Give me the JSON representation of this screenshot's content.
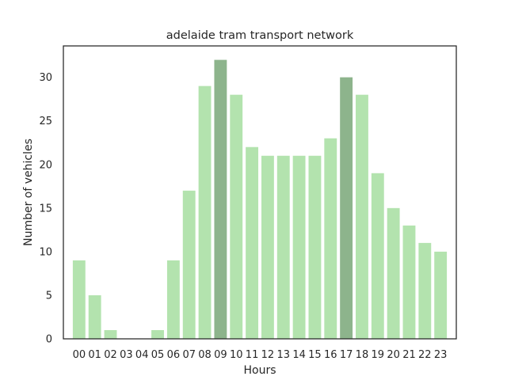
{
  "chart_data": {
    "type": "bar",
    "title": "adelaide tram transport network",
    "xlabel": "Hours",
    "ylabel": "Number of vehicles",
    "categories": [
      "00",
      "01",
      "02",
      "03",
      "04",
      "05",
      "06",
      "07",
      "08",
      "09",
      "10",
      "11",
      "12",
      "13",
      "14",
      "15",
      "16",
      "17",
      "18",
      "19",
      "20",
      "21",
      "22",
      "23"
    ],
    "values": [
      9,
      5,
      1,
      0,
      0,
      1,
      9,
      17,
      29,
      32,
      28,
      22,
      21,
      21,
      21,
      21,
      23,
      30,
      28,
      19,
      15,
      13,
      11,
      10
    ],
    "highlighted": [
      "09",
      "17"
    ],
    "ylim": [
      0,
      33.6
    ],
    "yticks": [
      0,
      5,
      10,
      15,
      20,
      25,
      30
    ],
    "grid": false,
    "colors": {
      "bar": "#b3e3ae",
      "highlight": "#8db48c",
      "axes": "#262626",
      "text": "#262626"
    }
  }
}
